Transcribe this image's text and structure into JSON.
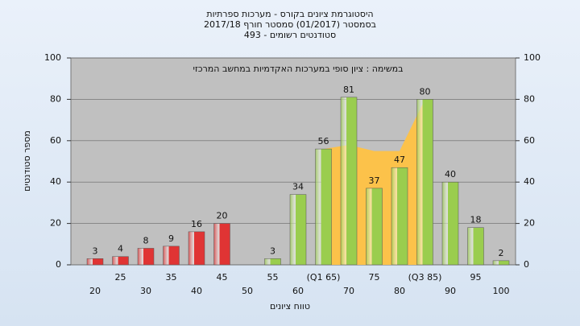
{
  "chart_data": {
    "type": "bar",
    "title": [
      "היסטוגרמת ציונים בקורס - מערכות ספרתיות",
      "בסמסטר (01/2017) סמסטר חורף 2017/18",
      "סטודנטים רשומים - 493"
    ],
    "annotation": "במשימה : ציון סופי במערכות האקדמיות במחשב המרכזי",
    "x_label": "טווח ציונים",
    "y_label": "מספר סטודנטים",
    "categories": [
      "20",
      "25",
      "30",
      "35",
      "40",
      "45",
      "50",
      "55",
      "60",
      "(Q1 65)",
      "70",
      "75",
      "80",
      "(Q3 85)",
      "90",
      "95",
      "100"
    ],
    "series": [
      {
        "values": [
          3,
          4,
          8,
          9,
          16,
          20,
          null,
          3,
          34,
          56,
          81,
          37,
          47,
          80,
          40,
          18,
          2
        ],
        "colors": [
          "#e03434",
          "#e03434",
          "#e03434",
          "#e03434",
          "#e03434",
          "#e03434",
          "#e03434",
          "#9acd4e",
          "#9acd4e",
          "#9acd4e",
          "#9acd4e",
          "#9acd4e",
          "#9acd4e",
          "#9acd4e",
          "#9acd4e",
          "#9acd4e",
          "#9acd4e"
        ]
      },
      {
        "type": "area",
        "color": "#fcc24a",
        "values": [
          null,
          null,
          null,
          null,
          null,
          null,
          null,
          null,
          null,
          56,
          58,
          55,
          55,
          80,
          null,
          null,
          null
        ]
      }
    ],
    "ylim": [
      0,
      100
    ],
    "yticks": [
      0,
      20,
      40,
      60,
      80,
      100
    ],
    "y2lim": [
      0,
      100
    ],
    "y2ticks": [
      0,
      20,
      40,
      60,
      80,
      100
    ],
    "grid": true
  }
}
